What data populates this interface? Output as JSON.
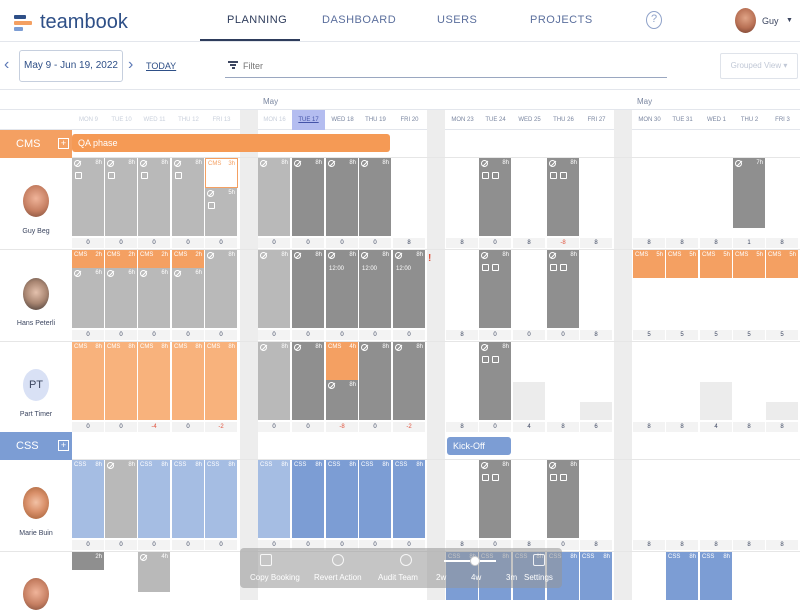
{
  "app": {
    "name": "teambook"
  },
  "nav": {
    "tabs": [
      {
        "label": "PLANNING",
        "active": true
      },
      {
        "label": "DASHBOARD"
      },
      {
        "label": "USERS"
      },
      {
        "label": "PROJECTS"
      }
    ],
    "help": "?",
    "user": {
      "name": "Guy"
    }
  },
  "toolbar": {
    "date_range": "May 9 - Jun 19, 2022",
    "today": "TODAY",
    "filter_placeholder": "Filter",
    "grouped_view": "Grouped View"
  },
  "calendar": {
    "months": [
      "May",
      "May"
    ],
    "days": [
      "MON 9",
      "TUE 10",
      "WED 11",
      "THU 12",
      "FRI 13",
      "MON 16",
      "TUE 17",
      "WED 18",
      "THU 19",
      "FRI 20",
      "MON 23",
      "TUE 24",
      "WED 25",
      "THU 26",
      "FRI 27",
      "MON 30",
      "TUE 31",
      "WED 1",
      "THU 2",
      "FRI 3"
    ],
    "today_day": "TUE 17"
  },
  "projects": [
    {
      "name": "CMS",
      "milestone": "QA phase",
      "color": "#f4a062"
    },
    {
      "name": "CSS",
      "milestone": "Kick-Off",
      "color": "#7c9dd4"
    }
  ],
  "people": [
    {
      "name": "Guy Beg",
      "totals": [
        "0",
        "0",
        "0",
        "0",
        "0",
        "0",
        "0",
        "0",
        "0",
        "8",
        "8",
        "0",
        "8",
        "-8",
        "8",
        "8",
        "8",
        "8",
        "1",
        "8"
      ]
    },
    {
      "name": "Hans Peterli",
      "totals": [
        "0",
        "0",
        "0",
        "0",
        "0",
        "0",
        "0",
        "0",
        "0",
        "0",
        "8",
        "0",
        "0",
        "0",
        "8",
        "5",
        "5",
        "5",
        "5",
        "5"
      ]
    },
    {
      "name": "Part Timer",
      "initials": "PT",
      "totals": [
        "0",
        "0",
        "-4",
        "0",
        "-2",
        "0",
        "0",
        "-8",
        "0",
        "-2",
        "8",
        "0",
        "4",
        "8",
        "6",
        "8",
        "8",
        "4",
        "8",
        "8"
      ]
    },
    {
      "name": "Marie Buin",
      "totals": [
        "0",
        "0",
        "0",
        "0",
        "0",
        "0",
        "0",
        "0",
        "0",
        "0",
        "8",
        "0",
        "8",
        "0",
        "8",
        "8",
        "8",
        "8",
        "8",
        "8"
      ]
    }
  ],
  "cell_labels": {
    "cms": "CMS",
    "css": "CSS",
    "h8": "8h",
    "h6": "6h",
    "h3": "3h",
    "h5": "5h",
    "h4": "4h",
    "h2": "2h",
    "h7": "7h",
    "t1200": "12:00"
  },
  "dock": {
    "items": [
      "Copy Booking",
      "Revert Action",
      "Audit Team",
      "2w",
      "4w",
      "3m",
      "Settings"
    ]
  },
  "colors": {
    "cms": "#f4a062",
    "css": "#7c9dd4",
    "booked_grey": "#b9b9b9",
    "dark_grey": "#8f8f8f",
    "negative": "#e0523c",
    "today": "#b4bdf0"
  }
}
